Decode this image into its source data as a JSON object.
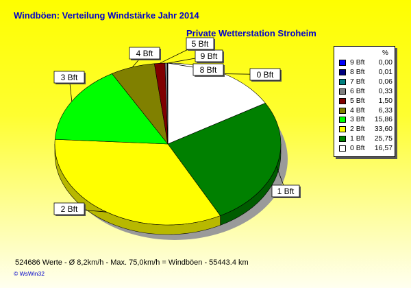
{
  "chart_data": {
    "type": "pie",
    "title": "Windböen: Verteilung Windstärke  Jahr 2014",
    "subtitle": "Private Wetterstation Stroheim",
    "legend_header": "%",
    "legend_position": "right",
    "slices": [
      {
        "label": "9 Bft",
        "value": "0,00",
        "pct": 0.0,
        "color": "#0000ff"
      },
      {
        "label": "8 Bft",
        "value": "0,01",
        "pct": 0.01,
        "color": "#000080"
      },
      {
        "label": "7 Bft",
        "value": "0,06",
        "pct": 0.06,
        "color": "#008080"
      },
      {
        "label": "6 Bft",
        "value": "0,33",
        "pct": 0.33,
        "color": "#808080"
      },
      {
        "label": "5 Bft",
        "value": "1,50",
        "pct": 1.5,
        "color": "#800000"
      },
      {
        "label": "4 Bft",
        "value": "6,33",
        "pct": 6.33,
        "color": "#808000"
      },
      {
        "label": "3 Bft",
        "value": "15,86",
        "pct": 15.86,
        "color": "#00ff00"
      },
      {
        "label": "2 Bft",
        "value": "33,60",
        "pct": 33.6,
        "color": "#ffff00"
      },
      {
        "label": "1 Bft",
        "value": "25,75",
        "pct": 25.75,
        "color": "#008000"
      },
      {
        "label": "0 Bft",
        "value": "16,57",
        "pct": 16.57,
        "color": "#ffffff"
      }
    ]
  },
  "footer": {
    "stats": "524686 Werte   -   Ø 8,2km/h  -  Max. 75,0km/h = Windböen   -   55443.4 km",
    "copyright": "© WsWin32"
  }
}
